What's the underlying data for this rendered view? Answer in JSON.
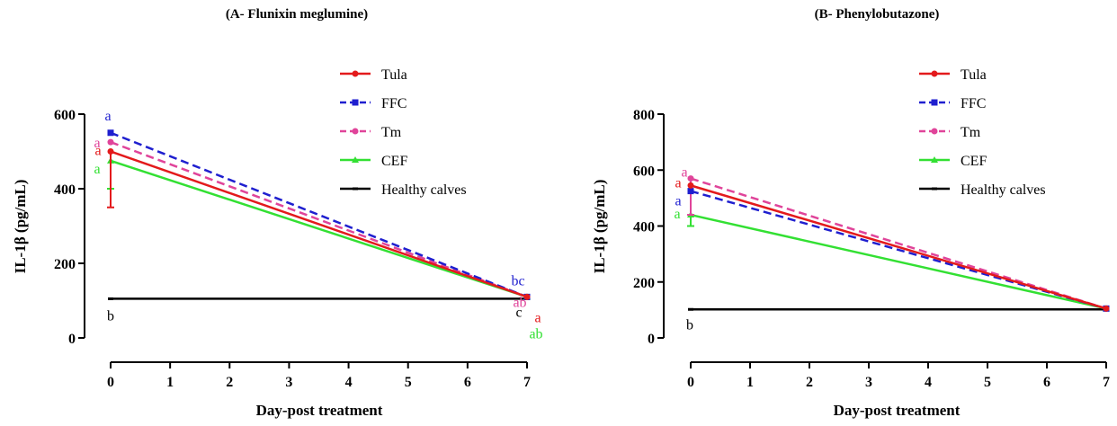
{
  "chart_data": [
    {
      "type": "line",
      "title": "(A- Flunixin meglumine)",
      "xlabel": "Day-post treatment",
      "ylabel": "IL-1β (pg/mL)",
      "xlim": [
        0,
        7
      ],
      "ylim": [
        0,
        600
      ],
      "xticks": [
        0,
        1,
        2,
        3,
        4,
        5,
        6,
        7
      ],
      "yticks": [
        0,
        200,
        400,
        600
      ],
      "legend_position": "top-right",
      "series": [
        {
          "name": "Tula",
          "color": "#e31a1c",
          "dash": "solid",
          "x": [
            0,
            7
          ],
          "y": [
            500,
            110
          ],
          "err_low": [
            350,
            null
          ],
          "err_high": [
            null,
            null
          ],
          "labels": [
            "a",
            "a"
          ]
        },
        {
          "name": "FFC",
          "color": "#1f1fcf",
          "dash": "dashed",
          "x": [
            0,
            7
          ],
          "y": [
            550,
            110
          ],
          "err_low": [
            null,
            null
          ],
          "err_high": [
            null,
            null
          ],
          "labels": [
            "a",
            "bc"
          ]
        },
        {
          "name": "Tm",
          "color": "#e0449a",
          "dash": "dashed",
          "x": [
            0,
            7
          ],
          "y": [
            525,
            110
          ],
          "err_low": [
            null,
            null
          ],
          "err_high": [
            null,
            null
          ],
          "labels": [
            "a",
            "ab"
          ]
        },
        {
          "name": "CEF",
          "color": "#33e033",
          "dash": "solid",
          "x": [
            0,
            7
          ],
          "y": [
            475,
            110
          ],
          "err_low": [
            400,
            null
          ],
          "err_high": [
            null,
            null
          ],
          "labels": [
            "a",
            "ab"
          ]
        },
        {
          "name": "Healthy calves",
          "color": "#000000",
          "dash": "solid",
          "x": [
            0,
            7
          ],
          "y": [
            105,
            105
          ],
          "err_low": [
            null,
            null
          ],
          "err_high": [
            null,
            null
          ],
          "labels": [
            "b",
            "c"
          ]
        }
      ]
    },
    {
      "type": "line",
      "title": "(B- Phenylobutazone)",
      "xlabel": "Day-post treatment",
      "ylabel": "IL-1β (pg/mL)",
      "xlim": [
        0,
        7
      ],
      "ylim": [
        0,
        800
      ],
      "xticks": [
        0,
        1,
        2,
        3,
        4,
        5,
        6,
        7
      ],
      "yticks": [
        0,
        200,
        400,
        600,
        800
      ],
      "legend_position": "top-right",
      "series": [
        {
          "name": "Tula",
          "color": "#e31a1c",
          "dash": "solid",
          "x": [
            0,
            7
          ],
          "y": [
            545,
            105
          ],
          "err_low": [
            null,
            null
          ],
          "err_high": [
            null,
            null
          ],
          "labels": [
            "a",
            ""
          ]
        },
        {
          "name": "FFC",
          "color": "#1f1fcf",
          "dash": "dashed",
          "x": [
            0,
            7
          ],
          "y": [
            525,
            105
          ],
          "err_low": [
            null,
            null
          ],
          "err_high": [
            null,
            null
          ],
          "labels": [
            "a",
            ""
          ]
        },
        {
          "name": "Tm",
          "color": "#e0449a",
          "dash": "dashed",
          "x": [
            0,
            7
          ],
          "y": [
            570,
            105
          ],
          "err_low": [
            440,
            null
          ],
          "err_high": [
            null,
            null
          ],
          "labels": [
            "a",
            ""
          ]
        },
        {
          "name": "CEF",
          "color": "#33e033",
          "dash": "solid",
          "x": [
            0,
            7
          ],
          "y": [
            440,
            105
          ],
          "err_low": [
            400,
            null
          ],
          "err_high": [
            null,
            null
          ],
          "labels": [
            "a",
            ""
          ]
        },
        {
          "name": "Healthy calves",
          "color": "#000000",
          "dash": "solid",
          "x": [
            0,
            7
          ],
          "y": [
            102,
            102
          ],
          "err_low": [
            null,
            null
          ],
          "err_high": [
            null,
            null
          ],
          "labels": [
            "b",
            ""
          ]
        }
      ]
    }
  ]
}
